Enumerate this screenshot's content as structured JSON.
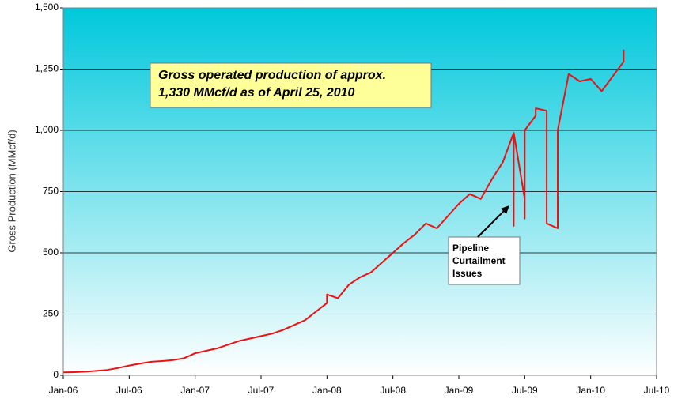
{
  "chart_data": {
    "type": "line",
    "ylabel": "Gross Production (MMcf/d)",
    "annotations": {
      "box": [
        "Gross operated production of approx.",
        "1,330 MMcf/d as of April 25, 2010"
      ],
      "arrow": [
        "Pipeline",
        "Curtailment",
        "Issues"
      ]
    },
    "color": "#ee1111",
    "grid": true,
    "x": [
      "2006-01",
      "2006-02",
      "2006-03",
      "2006-04",
      "2006-05",
      "2006-06",
      "2006-07",
      "2006-08",
      "2006-09",
      "2006-10",
      "2006-11",
      "2006-12",
      "2007-01",
      "2007-02",
      "2007-03",
      "2007-04",
      "2007-05",
      "2007-06",
      "2007-07",
      "2007-08",
      "2007-09",
      "2007-10",
      "2007-11",
      "2007-12",
      "2008-01",
      "2008-01",
      "2008-02",
      "2008-03",
      "2008-04",
      "2008-05",
      "2008-06",
      "2008-07",
      "2008-08",
      "2008-09",
      "2008-10",
      "2008-11",
      "2008-12",
      "2009-01",
      "2009-02",
      "2009-03",
      "2009-04",
      "2009-05",
      "2009-06",
      "2009-06",
      "2009-06",
      "2009-07",
      "2009-07",
      "2009-07",
      "2009-07",
      "2009-08",
      "2009-08",
      "2009-09",
      "2009-09",
      "2009-10",
      "2009-10",
      "2009-10",
      "2009-11",
      "2009-12",
      "2010-01",
      "2010-02",
      "2010-03",
      "2010-04",
      "2010-04"
    ],
    "values": [
      12,
      13,
      15,
      18,
      22,
      30,
      40,
      48,
      55,
      58,
      62,
      70,
      90,
      100,
      110,
      125,
      140,
      150,
      160,
      170,
      185,
      205,
      225,
      260,
      295,
      330,
      315,
      370,
      400,
      420,
      460,
      500,
      540,
      575,
      620,
      600,
      650,
      700,
      740,
      720,
      800,
      870,
      990,
      610,
      990,
      720,
      990,
      640,
      1000,
      1060,
      1090,
      1080,
      620,
      600,
      700,
      1000,
      1230,
      1200,
      1210,
      1160,
      1220,
      1280,
      1330
    ],
    "xlim": [
      "2006-01",
      "2010-07"
    ],
    "xticks": [
      {
        "value": "2006-01",
        "label": "Jan-06"
      },
      {
        "value": "2006-07",
        "label": "Jul-06"
      },
      {
        "value": "2007-01",
        "label": "Jan-07"
      },
      {
        "value": "2007-07",
        "label": "Jul-07"
      },
      {
        "value": "2008-01",
        "label": "Jan-08"
      },
      {
        "value": "2008-07",
        "label": "Jul-08"
      },
      {
        "value": "2009-01",
        "label": "Jan-09"
      },
      {
        "value": "2009-07",
        "label": "Jul-09"
      },
      {
        "value": "2010-01",
        "label": "Jan-10"
      },
      {
        "value": "2010-07",
        "label": "Jul-10"
      }
    ],
    "ylim": [
      0,
      1500
    ],
    "yticks": [
      0,
      250,
      500,
      750,
      {
        "value": 1000,
        "label": "1,000"
      },
      {
        "value": 1250,
        "label": "1,250"
      },
      {
        "value": 1500,
        "label": "1,500"
      }
    ]
  }
}
